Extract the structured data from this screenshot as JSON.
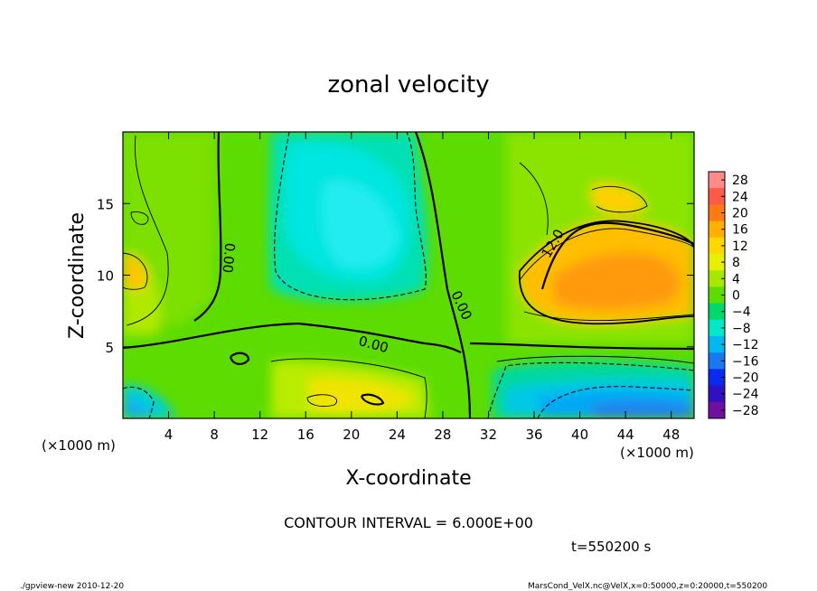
{
  "chart_data": {
    "type": "heatmap",
    "title": "zonal velocity",
    "xlabel": "X-coordinate",
    "ylabel": "Z-coordinate",
    "x_unit_left": "(×1000 m)",
    "x_unit_right": "(×1000 m)",
    "xlim": [
      0,
      50
    ],
    "ylim": [
      0,
      20
    ],
    "x_ticks": [
      4,
      8,
      12,
      16,
      20,
      24,
      28,
      32,
      36,
      40,
      44,
      48
    ],
    "y_ticks": [
      5,
      10,
      15
    ],
    "colorbar": {
      "levels": [
        28,
        24,
        20,
        16,
        12,
        8,
        4,
        0,
        -4,
        -8,
        -12,
        -16,
        -20,
        -24,
        -28
      ],
      "labels": [
        "28",
        "24",
        "20",
        "16",
        "12",
        "8",
        "4",
        "0",
        "−4",
        "−8",
        "−12",
        "−16",
        "−20",
        "−24",
        "−28"
      ],
      "colors": [
        "#ff8a8a",
        "#ff5a46",
        "#ff7a14",
        "#ffb000",
        "#ffd800",
        "#e8f000",
        "#a8e800",
        "#5cdc00",
        "#00d86a",
        "#00e8c8",
        "#00b8f0",
        "#1878f0",
        "#0a2af0",
        "#3010c0",
        "#7010a0"
      ],
      "range": [
        -30,
        30
      ]
    },
    "contour_labels": [
      "0.00",
      "0.00",
      "0.00",
      "12.0"
    ],
    "contour_interval": 6.0,
    "footer": {
      "contour_interval_text": "CONTOUR INTERVAL = 6.000E+00",
      "time_text": "t=550200 s",
      "left_caption": "./gpview-new  2010-12-20",
      "right_caption": "MarsCond_VelX.nc@VelX,x=0:50000,z=0:20000,t=550200"
    }
  }
}
